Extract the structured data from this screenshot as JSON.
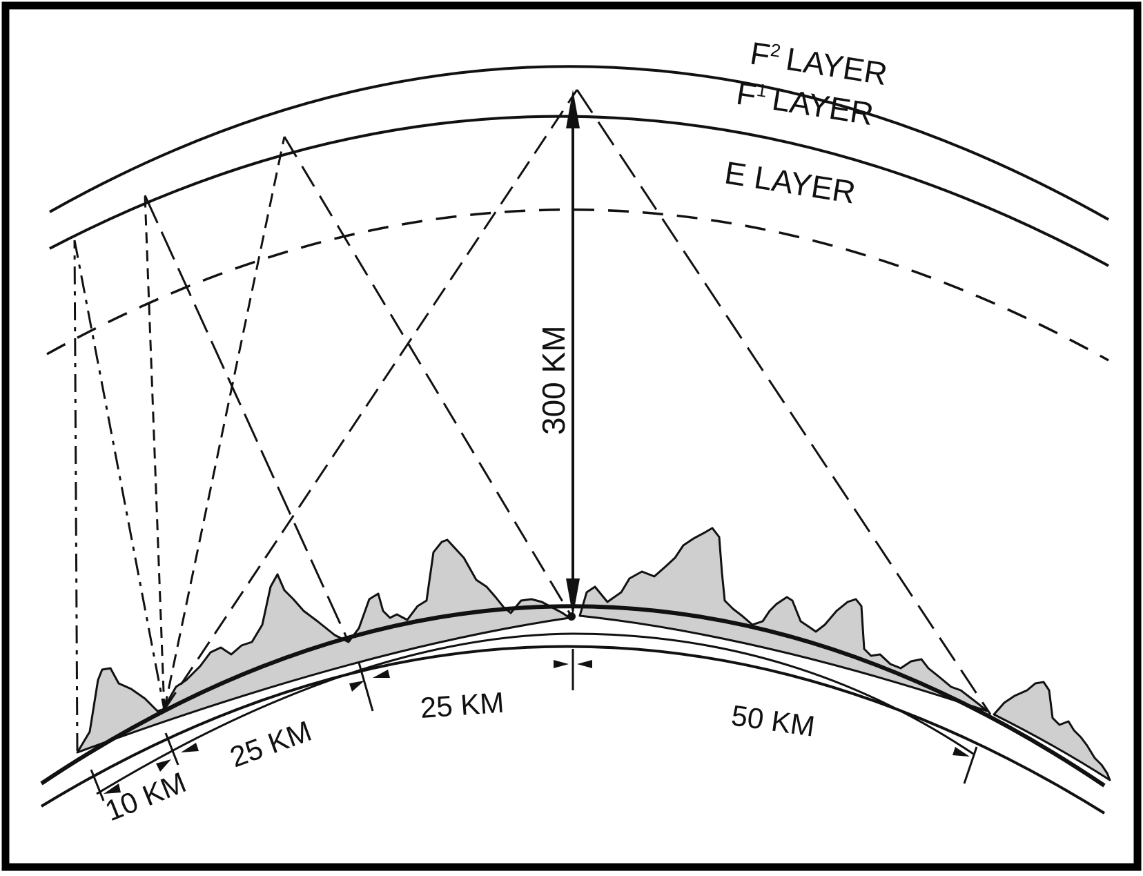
{
  "layers": {
    "f2": {
      "letter": "F",
      "sup": "2",
      "word": "LAYER"
    },
    "f1": {
      "letter": "F",
      "sup": "1",
      "word": "LAYER"
    },
    "e": {
      "text": "E LAYER"
    }
  },
  "distances": {
    "height": "300 KM",
    "d10": "10 KM",
    "d25a": "25 KM",
    "d25b": "25 KM",
    "d50": "50 KM"
  },
  "colors": {
    "ink": "#111111",
    "terrain_fill": "#cfcfcf",
    "frame": "#000000"
  }
}
